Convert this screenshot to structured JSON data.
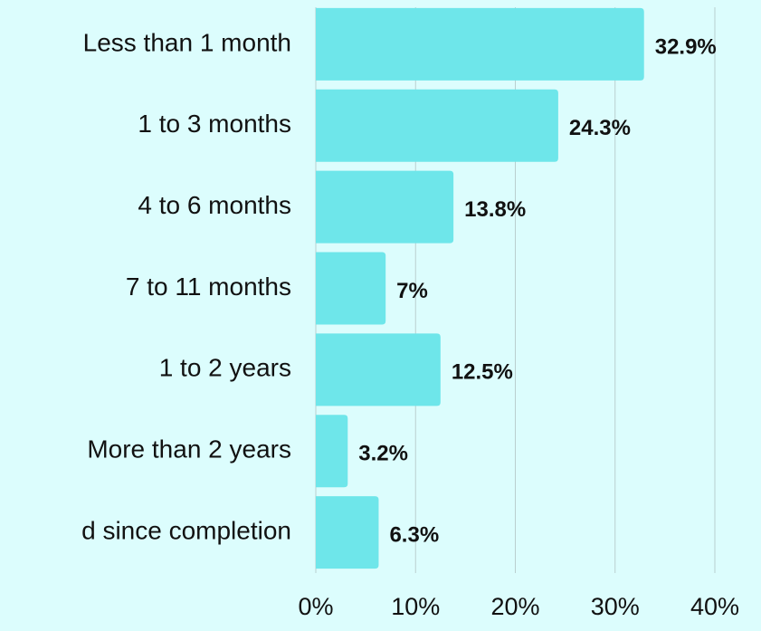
{
  "chart_data": {
    "type": "bar",
    "orientation": "horizontal",
    "categories": [
      "Less than 1 month",
      "1 to 3 months",
      "4 to 6 months",
      "7 to 11 months",
      "1 to 2 years",
      "More than 2 years",
      "d since completion"
    ],
    "values": [
      32.9,
      24.3,
      13.8,
      7,
      12.5,
      3.2,
      6.3
    ],
    "value_labels": [
      "32.9%",
      "24.3%",
      "13.8%",
      "7%",
      "12.5%",
      "3.2%",
      "6.3%"
    ],
    "color": "#6ee6ea",
    "xlim": [
      0,
      40
    ],
    "xticks": [
      {
        "value": 0,
        "label": "0%"
      },
      {
        "value": 10,
        "label": "10%"
      },
      {
        "value": 20,
        "label": "20%"
      },
      {
        "value": 30,
        "label": "30%"
      },
      {
        "value": 40,
        "label": "40%"
      }
    ],
    "grid": true
  }
}
